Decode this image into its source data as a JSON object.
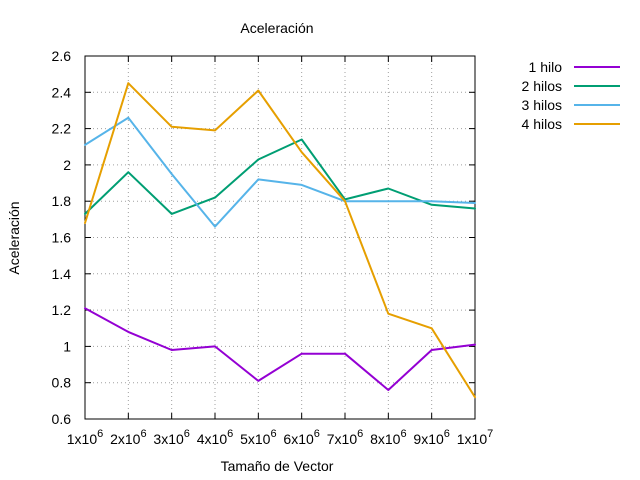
{
  "chart_data": {
    "type": "line",
    "title": "Aceleración",
    "xlabel": "Tamaño de Vector",
    "ylabel": "Aceleración",
    "x": [
      1000000,
      2000000,
      3000000,
      4000000,
      5000000,
      6000000,
      7000000,
      8000000,
      9000000,
      10000000
    ],
    "xtick_labels": [
      {
        "base": "1x10",
        "exp": "6"
      },
      {
        "base": "2x10",
        "exp": "6"
      },
      {
        "base": "3x10",
        "exp": "6"
      },
      {
        "base": "4x10",
        "exp": "6"
      },
      {
        "base": "5x10",
        "exp": "6"
      },
      {
        "base": "6x10",
        "exp": "6"
      },
      {
        "base": "7x10",
        "exp": "6"
      },
      {
        "base": "8x10",
        "exp": "6"
      },
      {
        "base": "9x10",
        "exp": "6"
      },
      {
        "base": "1x10",
        "exp": "7"
      }
    ],
    "ylim": [
      0.6,
      2.6
    ],
    "yticks": [
      0.6,
      0.8,
      1,
      1.2,
      1.4,
      1.6,
      1.8,
      2,
      2.2,
      2.4,
      2.6
    ],
    "ytick_labels": [
      "0.6",
      "0.8",
      "1",
      "1.2",
      "1.4",
      "1.6",
      "1.8",
      "2",
      "2.2",
      "2.4",
      "2.6"
    ],
    "grid": true,
    "legend_position": "top-right",
    "series": [
      {
        "name": "1 hilo",
        "color": "#9400d3",
        "values": [
          1.21,
          1.08,
          0.98,
          1.0,
          0.81,
          0.96,
          0.96,
          0.76,
          0.98,
          1.01
        ]
      },
      {
        "name": "2 hilos",
        "color": "#009e73",
        "values": [
          1.73,
          1.96,
          1.73,
          1.82,
          2.03,
          2.14,
          1.81,
          1.87,
          1.78,
          1.76
        ]
      },
      {
        "name": "3 hilos",
        "color": "#56b4e9",
        "values": [
          2.11,
          2.26,
          1.95,
          1.66,
          1.92,
          1.89,
          1.8,
          1.8,
          1.8,
          1.79
        ]
      },
      {
        "name": "4 hilos",
        "color": "#e69f00",
        "values": [
          1.68,
          2.45,
          2.21,
          2.19,
          2.41,
          2.07,
          1.8,
          1.18,
          1.1,
          0.72
        ]
      }
    ]
  }
}
